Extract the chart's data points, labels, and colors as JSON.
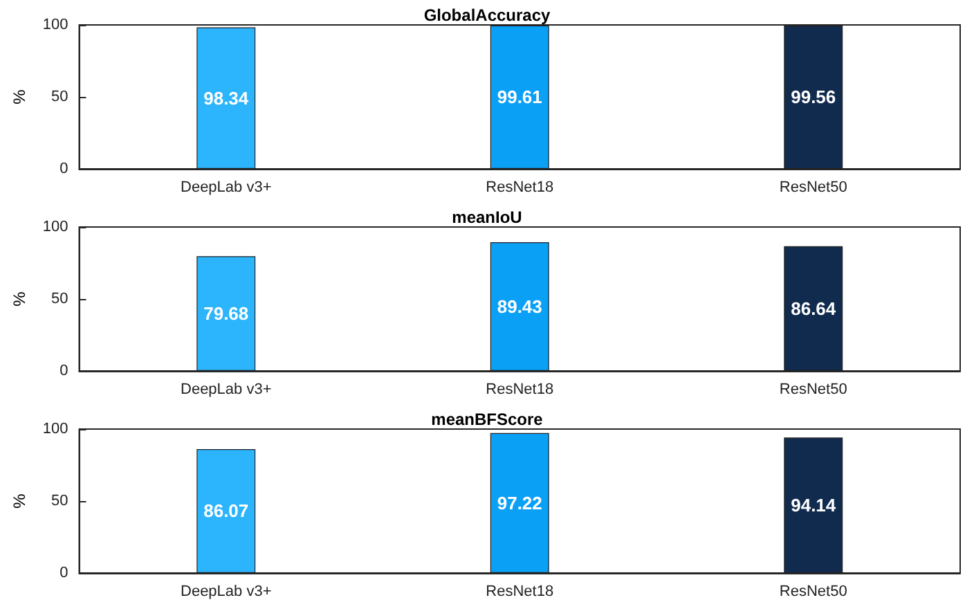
{
  "chart_data": [
    {
      "type": "bar",
      "title": "GlobalAccuracy",
      "ylabel": "%",
      "categories": [
        "DeepLab v3+",
        "ResNet18",
        "ResNet50"
      ],
      "values": [
        98.34,
        99.61,
        99.56
      ],
      "colors": [
        "#2cb4fc",
        "#0aa0f6",
        "#112b4f"
      ],
      "ylim": [
        0,
        100
      ],
      "yticks": [
        0,
        50,
        100
      ],
      "data_labels": true
    },
    {
      "type": "bar",
      "title": "meanIoU",
      "ylabel": "%",
      "categories": [
        "DeepLab v3+",
        "ResNet18",
        "ResNet50"
      ],
      "values": [
        79.68,
        89.43,
        86.64
      ],
      "colors": [
        "#2cb4fc",
        "#0aa0f6",
        "#112b4f"
      ],
      "ylim": [
        0,
        100
      ],
      "yticks": [
        0,
        50,
        100
      ],
      "data_labels": true
    },
    {
      "type": "bar",
      "title": "meanBFScore",
      "ylabel": "%",
      "categories": [
        "DeepLab v3+",
        "ResNet18",
        "ResNet50"
      ],
      "values": [
        86.07,
        97.22,
        94.14
      ],
      "colors": [
        "#2cb4fc",
        "#0aa0f6",
        "#112b4f"
      ],
      "ylim": [
        0,
        100
      ],
      "yticks": [
        0,
        50,
        100
      ],
      "data_labels": true
    }
  ]
}
